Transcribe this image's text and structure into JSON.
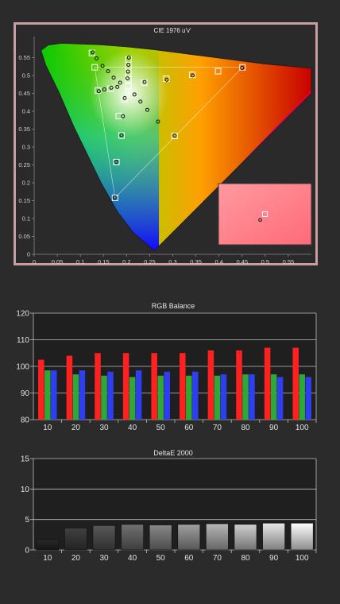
{
  "chart_data": [
    {
      "type": "scatter",
      "title": "CIE 1976 u'v'",
      "xlabel": "",
      "ylabel": "",
      "xlim": [
        0,
        0.6
      ],
      "ylim": [
        0,
        0.6
      ],
      "xticks": [
        "0",
        "0.05",
        "0.1",
        "0.15",
        "0.2",
        "0.25",
        "0.3",
        "0.35",
        "0.4",
        "0.45",
        "0.5",
        "0.55"
      ],
      "yticks": [
        "0",
        "0.05",
        "0.1",
        "0.15",
        "0.2",
        "0.25",
        "0.3",
        "0.35",
        "0.4",
        "0.45",
        "0.5",
        "0.55"
      ],
      "grid": false,
      "legend": "none",
      "gamut_targets": [
        {
          "u": 0.125,
          "v": 0.563
        },
        {
          "u": 0.131,
          "v": 0.523
        },
        {
          "u": 0.175,
          "v": 0.158
        },
        {
          "u": 0.451,
          "v": 0.523
        },
        {
          "u": 0.204,
          "v": 0.47
        },
        {
          "u": 0.304,
          "v": 0.331
        }
      ],
      "saturation_targets": [
        {
          "u": 0.204,
          "v": 0.545
        },
        {
          "u": 0.204,
          "v": 0.525
        },
        {
          "u": 0.204,
          "v": 0.505
        },
        {
          "u": 0.204,
          "v": 0.488
        },
        {
          "u": 0.238,
          "v": 0.48
        },
        {
          "u": 0.286,
          "v": 0.491
        },
        {
          "u": 0.342,
          "v": 0.502
        },
        {
          "u": 0.398,
          "v": 0.512
        },
        {
          "u": 0.183,
          "v": 0.387
        },
        {
          "u": 0.189,
          "v": 0.332
        },
        {
          "u": 0.178,
          "v": 0.258
        },
        {
          "u": 0.138,
          "v": 0.458
        },
        {
          "u": 0.165,
          "v": 0.463
        },
        {
          "u": 0.195,
          "v": 0.433
        }
      ],
      "measured_points": [
        {
          "u": 0.127,
          "v": 0.565
        },
        {
          "u": 0.135,
          "v": 0.548
        },
        {
          "u": 0.148,
          "v": 0.527
        },
        {
          "u": 0.16,
          "v": 0.512
        },
        {
          "u": 0.172,
          "v": 0.494
        },
        {
          "u": 0.186,
          "v": 0.48
        },
        {
          "u": 0.205,
          "v": 0.55
        },
        {
          "u": 0.204,
          "v": 0.53
        },
        {
          "u": 0.203,
          "v": 0.511
        },
        {
          "u": 0.202,
          "v": 0.492
        },
        {
          "u": 0.239,
          "v": 0.482
        },
        {
          "u": 0.287,
          "v": 0.488
        },
        {
          "u": 0.343,
          "v": 0.5
        },
        {
          "u": 0.45,
          "v": 0.521
        },
        {
          "u": 0.152,
          "v": 0.461
        },
        {
          "u": 0.167,
          "v": 0.466
        },
        {
          "u": 0.18,
          "v": 0.468
        },
        {
          "u": 0.196,
          "v": 0.437
        },
        {
          "u": 0.192,
          "v": 0.386
        },
        {
          "u": 0.217,
          "v": 0.447
        },
        {
          "u": 0.23,
          "v": 0.427
        },
        {
          "u": 0.245,
          "v": 0.404
        },
        {
          "u": 0.268,
          "v": 0.371
        },
        {
          "u": 0.14,
          "v": 0.456
        },
        {
          "u": 0.189,
          "v": 0.333
        },
        {
          "u": 0.178,
          "v": 0.259
        },
        {
          "u": 0.174,
          "v": 0.159
        },
        {
          "u": 0.304,
          "v": 0.332
        }
      ],
      "inset": {
        "target": {
          "u": 0.2105,
          "v": 0.4737
        },
        "measured": {
          "u": 0.2095,
          "v": 0.4725
        }
      }
    },
    {
      "type": "bar",
      "title": "RGB Balance",
      "categories": [
        "10",
        "20",
        "30",
        "40",
        "50",
        "60",
        "70",
        "80",
        "90",
        "100"
      ],
      "series": [
        {
          "name": "Red",
          "color": "#ff2020",
          "values": [
            102.5,
            104,
            105,
            105,
            105,
            105,
            106,
            106,
            107,
            107
          ]
        },
        {
          "name": "Green",
          "color": "#2ea836",
          "values": [
            98.5,
            97,
            96.5,
            96,
            96.5,
            96.5,
            96.5,
            97,
            97,
            97
          ]
        },
        {
          "name": "Blue",
          "color": "#2f3ff0",
          "values": [
            98.5,
            98.5,
            98,
            98.5,
            98,
            98,
            97,
            97,
            96,
            96
          ]
        }
      ],
      "ylim": [
        80,
        120
      ],
      "yticks": [
        "80",
        "90",
        "100",
        "110",
        "120"
      ],
      "grid": true
    },
    {
      "type": "bar",
      "title": "DeltaE 2000",
      "categories": [
        "10",
        "20",
        "30",
        "40",
        "50",
        "60",
        "70",
        "80",
        "90",
        "100"
      ],
      "values": [
        1.8,
        3.6,
        4.0,
        4.2,
        4.1,
        4.2,
        4.3,
        4.2,
        4.4,
        4.4
      ],
      "ylim": [
        0,
        15
      ],
      "yticks": [
        "0",
        "5",
        "10",
        "15"
      ],
      "grid": true
    }
  ]
}
